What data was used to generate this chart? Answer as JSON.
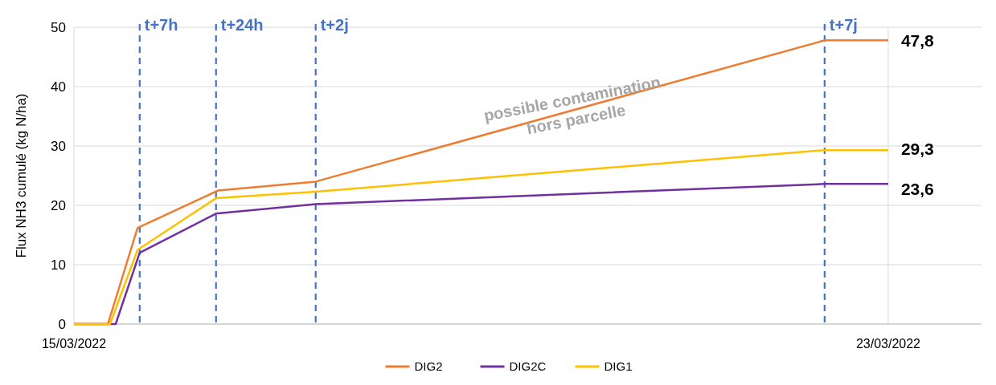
{
  "chart_data": {
    "type": "line",
    "ylabel": "Flux NH3 cumulé (kg N/ha)",
    "xlim": [
      "2022-03-15",
      "2022-03-23T22:00"
    ],
    "xticks": [
      {
        "value": "2022-03-15",
        "label": "15/03/2022"
      },
      {
        "value": "2022-03-23",
        "label": "23/03/2022"
      }
    ],
    "ylim": [
      0,
      50
    ],
    "yticks": [
      0,
      10,
      20,
      30,
      40,
      50
    ],
    "grid": true,
    "legend": "bottom",
    "series": [
      {
        "name": "DIG2",
        "color": "#ed7d31",
        "x": [
          "2022-03-15",
          "2022-03-15T08:00",
          "2022-03-15T15:00",
          "2022-03-16T10:00",
          "2022-03-17T09:00",
          "2022-03-22T09:00",
          "2022-03-23"
        ],
        "values": [
          0,
          0,
          16.2,
          22.5,
          24,
          47.8,
          47.8
        ],
        "value_labels": [
          null,
          null,
          null,
          null,
          null,
          null,
          "47,8"
        ]
      },
      {
        "name": "DIG2C",
        "color": "#7030a0",
        "x": [
          "2022-03-15",
          "2022-03-15T09:50",
          "2022-03-15T15:30",
          "2022-03-16T09:30",
          "2022-03-17T09:00",
          "2022-03-22T09:00",
          "2022-03-23"
        ],
        "values": [
          0,
          0,
          12,
          18.6,
          20.2,
          23.6,
          23.6
        ],
        "value_labels": [
          null,
          null,
          null,
          null,
          null,
          null,
          "23,6"
        ]
      },
      {
        "name": "DIG1",
        "color": "#ffc000",
        "x": [
          "2022-03-15",
          "2022-03-15T08:30",
          "2022-03-15T15:00",
          "2022-03-16T09:30",
          "2022-03-17T09:00",
          "2022-03-22T09:00",
          "2022-03-23"
        ],
        "values": [
          0,
          0,
          12.5,
          21.2,
          22.3,
          29.3,
          29.3
        ],
        "value_labels": [
          null,
          null,
          null,
          null,
          null,
          null,
          "29,3"
        ]
      }
    ],
    "ref_lines": [
      {
        "axis": "x",
        "value": "2022-03-15T15:30",
        "label": "t+7h",
        "color": "#4472c4",
        "line_style": "dashed"
      },
      {
        "axis": "x",
        "value": "2022-03-16T09:30",
        "label": "t+24h",
        "color": "#4472c4",
        "line_style": "dashed"
      },
      {
        "axis": "x",
        "value": "2022-03-17T09:00",
        "label": "t+2j",
        "color": "#4472c4",
        "line_style": "dashed"
      },
      {
        "axis": "x",
        "value": "2022-03-22T09:00",
        "label": "t+7j",
        "color": "#4472c4",
        "line_style": "dashed"
      }
    ],
    "annotations": [
      "possible contamination\nhors parcelle"
    ]
  }
}
